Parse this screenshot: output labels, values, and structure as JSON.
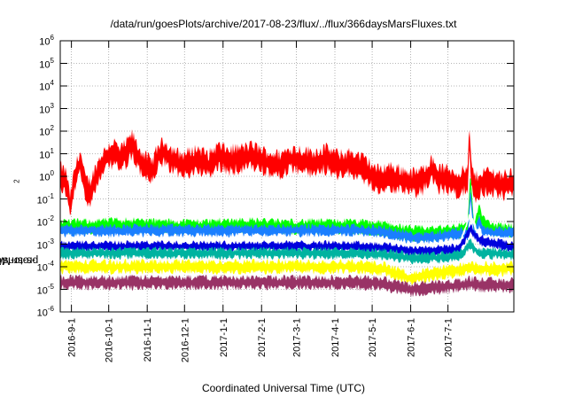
{
  "chart_data": {
    "type": "line",
    "title": "/data/run/goesPlots/archive/2017-08-23/flux/../flux/366daysMarsFluxes.txt",
    "xlabel": "Coordinated Universal Time (UTC)",
    "ylabel_base": "protons/cm",
    "ylabel_sup": "2",
    "ylabel_tail": "-s-sr-MeV",
    "yscale": "log",
    "ylim": [
      1e-06,
      1000000.0
    ],
    "xlim": [
      "2016-08-23",
      "2017-08-23"
    ],
    "grid": true,
    "ytick_base": "10",
    "yticks": [
      -6,
      -5,
      -4,
      -3,
      -2,
      -1,
      0,
      1,
      2,
      3,
      4,
      5,
      6
    ],
    "xticks": [
      "2016-9-1",
      "2016-10-1",
      "2016-11-1",
      "2016-12-1",
      "2017-1-1",
      "2017-2-1",
      "2017-3-1",
      "2017-4-1",
      "2017-5-1",
      "2017-6-1",
      "2017-7-1"
    ],
    "series": [
      {
        "color": "#ff0000",
        "spread": 0.35,
        "x": [
          "2016-08-23",
          "2016-08-28",
          "2016-08-31",
          "2016-09-03",
          "2016-09-08",
          "2016-09-12",
          "2016-09-16",
          "2016-09-20",
          "2016-09-25",
          "2016-10-01",
          "2016-10-05",
          "2016-10-10",
          "2016-10-15",
          "2016-10-20",
          "2016-10-25",
          "2016-10-30",
          "2016-11-05",
          "2016-11-10",
          "2016-11-15",
          "2016-11-20",
          "2016-11-28",
          "2016-12-05",
          "2016-12-12",
          "2016-12-20",
          "2016-12-28",
          "2017-01-05",
          "2017-01-15",
          "2017-01-25",
          "2017-02-05",
          "2017-02-15",
          "2017-02-25",
          "2017-03-05",
          "2017-03-15",
          "2017-03-25",
          "2017-04-05",
          "2017-04-15",
          "2017-04-25",
          "2017-05-05",
          "2017-05-10",
          "2017-05-15",
          "2017-05-20",
          "2017-05-27",
          "2017-06-03",
          "2017-06-10",
          "2017-06-17",
          "2017-06-24",
          "2017-07-01",
          "2017-07-08",
          "2017-07-14",
          "2017-07-17",
          "2017-07-18",
          "2017-07-20",
          "2017-07-23",
          "2017-07-27",
          "2017-08-01",
          "2017-08-08",
          "2017-08-15",
          "2017-08-23"
        ],
        "y": [
          1.0,
          0.5,
          0.04,
          0.5,
          5,
          0.3,
          0.2,
          0.8,
          3,
          8,
          12,
          5,
          10,
          25,
          6,
          3,
          1.5,
          8,
          12,
          6,
          3,
          4,
          6,
          3,
          8,
          5,
          6,
          8,
          4,
          3,
          6,
          5,
          4,
          6,
          3,
          4,
          2,
          0.7,
          0.8,
          1,
          0.8,
          0.6,
          0.5,
          0.6,
          2,
          0.8,
          0.7,
          0.5,
          0.6,
          0.8,
          60,
          1,
          0.3,
          0.5,
          0.6,
          0.5,
          0.4,
          0.5
        ]
      },
      {
        "color": "#00ff00",
        "spread": 0.18,
        "x": [
          "2016-08-23",
          "2016-09-15",
          "2016-10-15",
          "2016-11-15",
          "2016-12-15",
          "2017-01-15",
          "2017-02-15",
          "2017-03-15",
          "2017-04-15",
          "2017-05-10",
          "2017-06-01",
          "2017-06-20",
          "2017-07-10",
          "2017-07-17",
          "2017-07-19",
          "2017-07-22",
          "2017-07-26",
          "2017-07-29",
          "2017-08-03",
          "2017-08-10",
          "2017-08-23"
        ],
        "y": [
          0.006,
          0.006,
          0.007,
          0.006,
          0.006,
          0.007,
          0.006,
          0.006,
          0.006,
          0.005,
          0.003,
          0.003,
          0.004,
          0.005,
          0.8,
          0.004,
          0.03,
          0.01,
          0.005,
          0.004,
          0.004
        ]
      },
      {
        "color": "#1a7fff",
        "spread": 0.15,
        "x": [
          "2016-08-23",
          "2016-09-15",
          "2016-10-15",
          "2016-11-15",
          "2016-12-15",
          "2017-01-15",
          "2017-02-15",
          "2017-03-15",
          "2017-04-15",
          "2017-05-10",
          "2017-06-01",
          "2017-06-20",
          "2017-07-10",
          "2017-07-17",
          "2017-07-19",
          "2017-07-22",
          "2017-07-26",
          "2017-07-29",
          "2017-08-03",
          "2017-08-23"
        ],
        "y": [
          0.004,
          0.004,
          0.004,
          0.004,
          0.004,
          0.004,
          0.004,
          0.004,
          0.004,
          0.0035,
          0.002,
          0.002,
          0.003,
          0.003,
          0.2,
          0.003,
          0.01,
          0.004,
          0.003,
          0.003
        ]
      },
      {
        "color": "#ffffff",
        "spread": 0.1,
        "x": [
          "2016-08-23",
          "2016-10-15",
          "2016-12-15",
          "2017-02-15",
          "2017-04-15",
          "2017-05-10",
          "2017-06-01",
          "2017-06-20",
          "2017-07-10",
          "2017-07-19",
          "2017-07-26",
          "2017-08-23"
        ],
        "y": [
          0.0015,
          0.0015,
          0.0015,
          0.0015,
          0.0015,
          0.0012,
          0.0008,
          0.0008,
          0.001,
          0.02,
          0.002,
          0.0012
        ]
      },
      {
        "color": "#0000dd",
        "spread": 0.13,
        "x": [
          "2016-08-23",
          "2016-10-15",
          "2016-12-15",
          "2017-02-15",
          "2017-04-15",
          "2017-05-10",
          "2017-06-01",
          "2017-06-20",
          "2017-07-10",
          "2017-07-19",
          "2017-07-26",
          "2017-08-23"
        ],
        "y": [
          0.0008,
          0.0008,
          0.0008,
          0.0008,
          0.0008,
          0.0007,
          0.0005,
          0.0005,
          0.0006,
          0.005,
          0.0015,
          0.0007
        ]
      },
      {
        "color": "#00b3a0",
        "spread": 0.14,
        "x": [
          "2016-08-23",
          "2016-10-15",
          "2016-12-15",
          "2017-02-15",
          "2017-04-15",
          "2017-05-10",
          "2017-06-01",
          "2017-06-20",
          "2017-07-10",
          "2017-07-19",
          "2017-07-26",
          "2017-08-23"
        ],
        "y": [
          0.0004,
          0.0004,
          0.0004,
          0.0004,
          0.0004,
          0.00035,
          0.00025,
          0.00025,
          0.0003,
          0.001,
          0.0004,
          0.00035
        ]
      },
      {
        "color": "#ffff00",
        "spread": 0.17,
        "x": [
          "2016-08-23",
          "2016-10-15",
          "2016-12-15",
          "2017-02-15",
          "2017-04-15",
          "2017-05-10",
          "2017-06-01",
          "2017-06-20",
          "2017-07-10",
          "2017-07-19",
          "2017-07-26",
          "2017-08-23"
        ],
        "y": [
          0.0001,
          0.0001,
          0.0001,
          0.0001,
          0.0001,
          8e-05,
          3e-05,
          5e-05,
          7e-05,
          0.0001,
          8e-05,
          8e-05
        ]
      },
      {
        "color": "#993366",
        "spread": 0.17,
        "x": [
          "2016-08-23",
          "2016-10-15",
          "2016-12-15",
          "2017-02-15",
          "2017-04-15",
          "2017-05-10",
          "2017-06-01",
          "2017-06-20",
          "2017-07-10",
          "2017-07-19",
          "2017-07-26",
          "2017-08-23"
        ],
        "y": [
          2e-05,
          2e-05,
          2e-05,
          2e-05,
          2e-05,
          1.8e-05,
          1e-05,
          1.2e-05,
          1.5e-05,
          1.8e-05,
          1.6e-05,
          1.5e-05
        ]
      }
    ]
  }
}
